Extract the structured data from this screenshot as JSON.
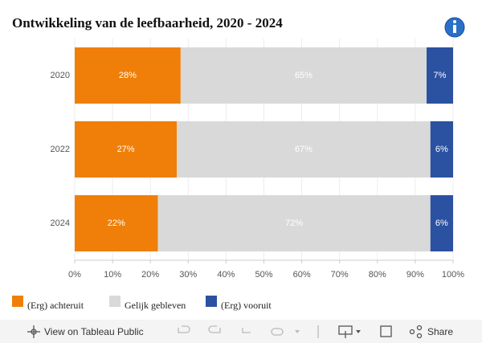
{
  "chart_data": {
    "type": "stacked_bar_horizontal",
    "title": "Ontwikkeling van de leefbaarheid, 2020 - 2024",
    "categories": [
      "2020",
      "2022",
      "2024"
    ],
    "series": [
      {
        "name": "(Erg) achteruit",
        "color": "#f07f09",
        "values": [
          28,
          27,
          22
        ],
        "value_labels": [
          "28%",
          "27%",
          "22%"
        ]
      },
      {
        "name": "Gelijk gebleven",
        "color": "#d9d9d9",
        "values": [
          65,
          67,
          72
        ],
        "value_labels": [
          "65%",
          "67%",
          "72%"
        ]
      },
      {
        "name": "(Erg) vooruit",
        "color": "#2b51a1",
        "values": [
          7,
          6,
          6
        ],
        "value_labels": [
          "7%",
          "6%",
          "6%"
        ]
      }
    ],
    "xlim": [
      0,
      100
    ],
    "xticks": [
      {
        "value": 0,
        "label": "0%"
      },
      {
        "value": 10,
        "label": "10%"
      },
      {
        "value": 20,
        "label": "20%"
      },
      {
        "value": 30,
        "label": "30%"
      },
      {
        "value": 40,
        "label": "40%"
      },
      {
        "value": 50,
        "label": "50%"
      },
      {
        "value": 60,
        "label": "60%"
      },
      {
        "value": 70,
        "label": "70%"
      },
      {
        "value": 80,
        "label": "80%"
      },
      {
        "value": 90,
        "label": "90%"
      },
      {
        "value": 100,
        "label": "100%"
      }
    ],
    "grid": true
  },
  "toolbar": {
    "view": "View on Tableau Public",
    "share": "Share"
  }
}
